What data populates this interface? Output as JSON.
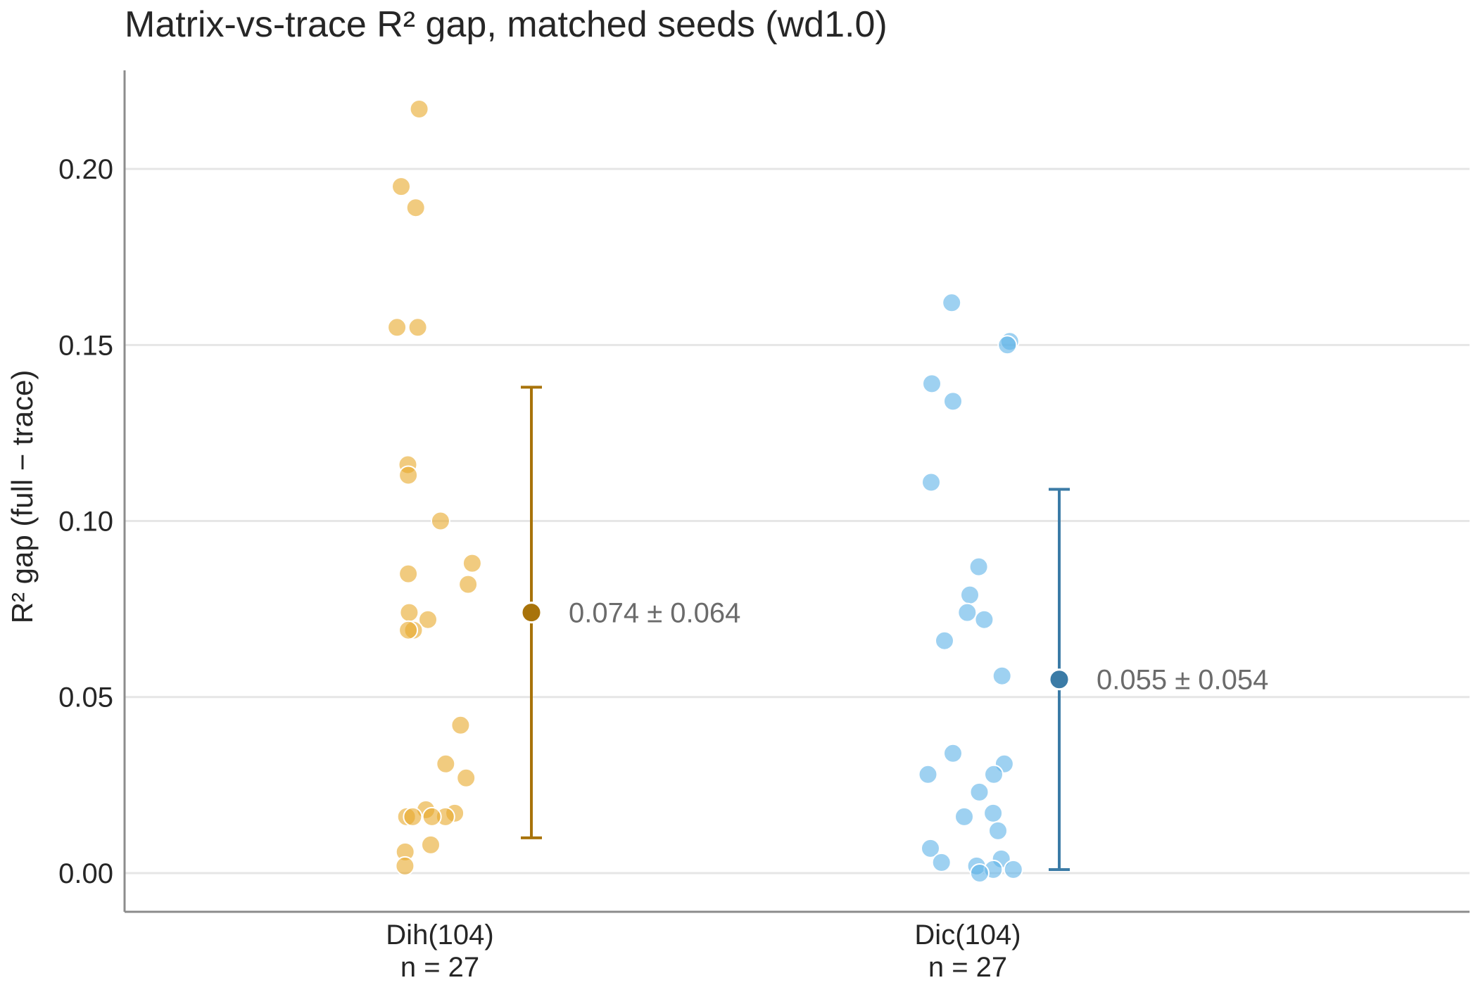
{
  "chart_data": {
    "type": "scatter",
    "title": "Matrix-vs-trace R² gap, matched seeds (wd1.0)",
    "ylabel": "R² gap (full − trace)",
    "xlabel": "",
    "ylim": [
      -0.011,
      0.228
    ],
    "yticks": [
      0.0,
      0.05,
      0.1,
      0.15,
      0.2
    ],
    "ytick_labels": [
      "0.00",
      "0.05",
      "0.10",
      "0.15",
      "0.20"
    ],
    "grid": "horizontal",
    "groups": [
      {
        "category": "Dih(104)",
        "n_label": "n = 27",
        "point_color": "#E8A92A",
        "summary_color": "#A8730A",
        "points": [
          0.217,
          0.195,
          0.189,
          0.155,
          0.155,
          0.116,
          0.113,
          0.1,
          0.088,
          0.085,
          0.082,
          0.074,
          0.072,
          0.069,
          0.069,
          0.042,
          0.031,
          0.027,
          0.018,
          0.017,
          0.016,
          0.016,
          0.016,
          0.016,
          0.008,
          0.006,
          0.002
        ],
        "mean": 0.074,
        "sd": 0.064,
        "annotation": "0.074 ± 0.064"
      },
      {
        "category": "Dic(104)",
        "n_label": "n = 27",
        "point_color": "#5DB3E8",
        "summary_color": "#3B7BA6",
        "points": [
          0.162,
          0.151,
          0.15,
          0.139,
          0.134,
          0.111,
          0.087,
          0.079,
          0.074,
          0.072,
          0.066,
          0.056,
          0.034,
          0.031,
          0.028,
          0.028,
          0.023,
          0.017,
          0.016,
          0.012,
          0.007,
          0.004,
          0.003,
          0.002,
          0.001,
          0.001,
          0.0
        ],
        "mean": 0.055,
        "sd": 0.054,
        "annotation": "0.055 ± 0.054"
      }
    ]
  }
}
